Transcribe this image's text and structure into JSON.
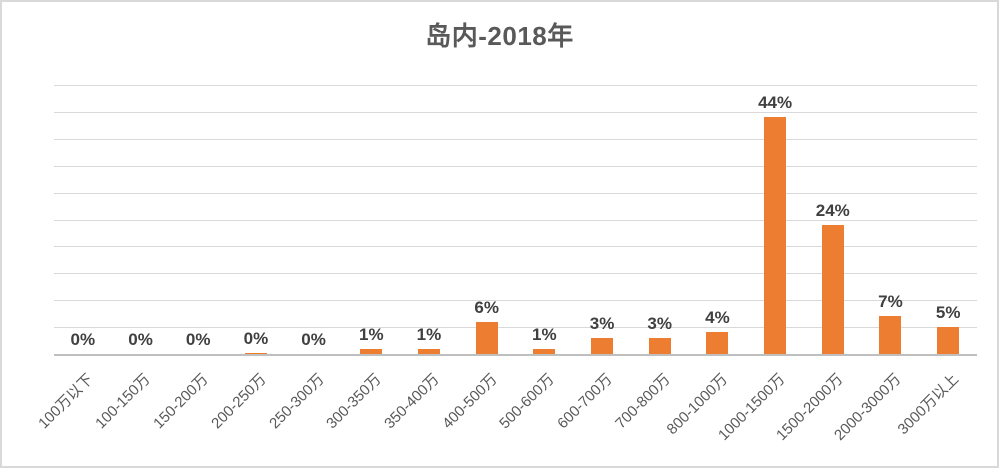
{
  "title": "岛内-2018年",
  "colors": {
    "bar": "#ed7d31",
    "gridline": "#d9d9d9",
    "axis_line": "#bfbfbf",
    "title_text": "#595959",
    "data_label_text": "#404040",
    "axis_label_text": "#595959",
    "frame_border": "#d9d9d9",
    "background": "#ffffff"
  },
  "chart_data": {
    "type": "bar",
    "title": "岛内-2018年",
    "categories": [
      "100万以下",
      "100-150万",
      "150-200万",
      "200-250万",
      "250-300万",
      "300-350万",
      "350-400万",
      "400-500万",
      "500-600万",
      "600-700万",
      "700-800万",
      "800-1000万",
      "1000-1500万",
      "1500-2000万",
      "2000-3000万",
      "3000万以上"
    ],
    "values": [
      0,
      0,
      0,
      0.2,
      0,
      1,
      1,
      6,
      1,
      3,
      3,
      4,
      44,
      24,
      7,
      5
    ],
    "data_labels": [
      "0%",
      "0%",
      "0%",
      "0%",
      "0%",
      "1%",
      "1%",
      "6%",
      "1%",
      "3%",
      "3%",
      "4%",
      "44%",
      "24%",
      "7%",
      "5%"
    ],
    "xlabel": "",
    "ylabel": "",
    "ylim": [
      0,
      50
    ],
    "gridline_step": 5,
    "grid": true,
    "legend": "none",
    "y_axis_tick_labels_visible": false,
    "x_label_rotation_deg": 45
  }
}
